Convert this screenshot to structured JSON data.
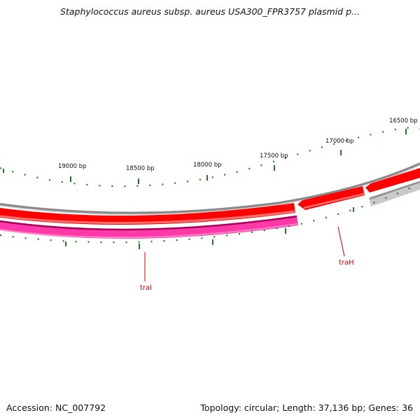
{
  "title": "Staphylococcus aureus subsp. aureus USA300_FPR3757 plasmid p...",
  "footer": {
    "accession": "Accession: NC_007792",
    "topology": "Topology: circular; Length: 37,136 bp; Genes: 36"
  },
  "ruler_labels": [
    "19000 bp",
    "18500 bp",
    "18000 bp",
    "17500 bp",
    "17000 bp",
    "16500 bp"
  ],
  "genes": [
    {
      "name": "traI",
      "strand": "minus",
      "color": "#ff3aa8"
    },
    {
      "name": "traH",
      "strand": "plus",
      "color": "#ff0000"
    }
  ],
  "colors": {
    "plus_strand_arrow": "#ff0000",
    "minus_strand_arrow": "#ff3aa8",
    "backbone": "#888888",
    "other_feature": "#c8c8c8",
    "tick": "#1f7a1f",
    "gene_label": "#cc0000"
  }
}
